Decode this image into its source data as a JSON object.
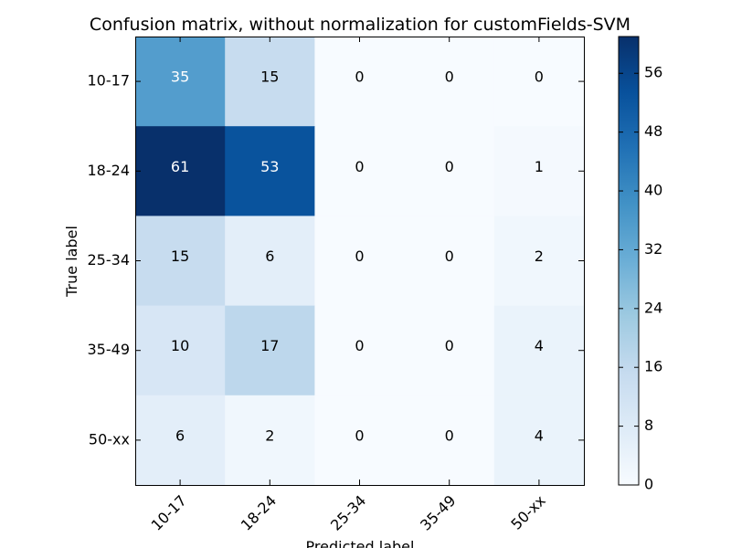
{
  "chart_data": {
    "type": "heatmap",
    "title": "Confusion matrix, without normalization for customFields-SVM",
    "xlabel": "Predicted label",
    "ylabel": "True label",
    "x_categories": [
      "10-17",
      "18-24",
      "25-34",
      "35-49",
      "50-xx"
    ],
    "y_categories": [
      "10-17",
      "18-24",
      "25-34",
      "35-49",
      "50-xx"
    ],
    "values": [
      [
        35,
        15,
        0,
        0,
        0
      ],
      [
        61,
        53,
        0,
        0,
        1
      ],
      [
        15,
        6,
        0,
        0,
        2
      ],
      [
        10,
        17,
        0,
        0,
        4
      ],
      [
        6,
        2,
        0,
        0,
        4
      ]
    ],
    "colormap": "Blues",
    "vmin": 0,
    "vmax": 61,
    "colorbar_ticks": [
      0,
      8,
      16,
      24,
      32,
      40,
      48,
      56
    ],
    "x_tick_rotation": 45,
    "text_colors": {
      "light": "#ffffff",
      "dark": "#000000"
    }
  }
}
